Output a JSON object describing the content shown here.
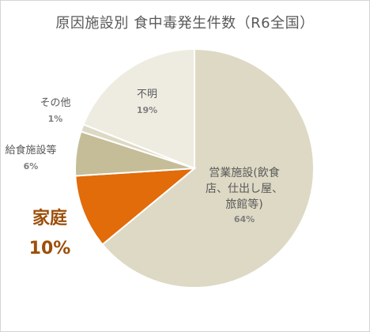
{
  "title": "原因施設別 食中毒発生件数（R6全国）",
  "chart_data": {
    "type": "pie",
    "start_angle_deg": 0,
    "direction": "clockwise",
    "slices": [
      {
        "label": [
          "営業施設(飲食",
          "店、仕出し屋、",
          "旅館等)"
        ],
        "pct_label": "64%",
        "value": 64,
        "color": "#ddd9c4"
      },
      {
        "label": [
          "家庭"
        ],
        "pct_label": "10%",
        "value": 10,
        "color": "#e26b0a",
        "highlight": true
      },
      {
        "label": [
          "給食施設等"
        ],
        "pct_label": "6%",
        "value": 6,
        "color": "#c4bd97"
      },
      {
        "label": [
          "その他"
        ],
        "pct_label": "1%",
        "value": 1,
        "color": "#ddd9c4"
      },
      {
        "label": [
          "不明"
        ],
        "pct_label": "19%",
        "value": 19,
        "color": "#eeece1"
      }
    ],
    "slice_border_color": "#ffffff"
  }
}
